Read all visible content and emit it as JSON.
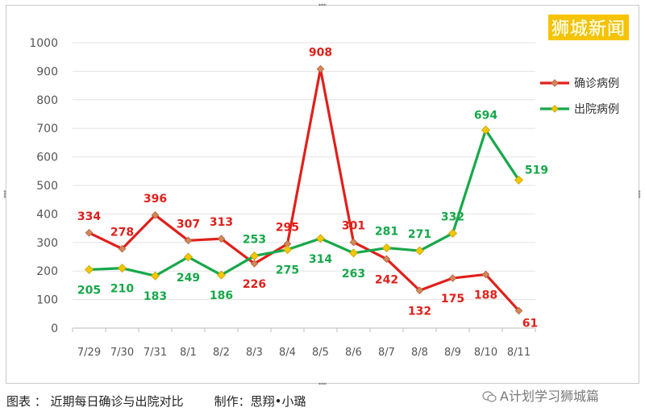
{
  "watermark": "狮城新闻",
  "caption": "图表 ： 近期每日确诊与出院对比        制作：思翔•小璐",
  "credit": "A计划学习狮城篇",
  "colors": {
    "confirmed": "#e0201b",
    "discharged": "#17a84a",
    "marker": "#f0c800",
    "grid": "#e3e3e3",
    "axis_text": "#555555"
  },
  "chart_data": {
    "type": "line",
    "title": "",
    "xlabel": "",
    "ylabel": "",
    "categories": [
      "7/29",
      "7/30",
      "7/31",
      "8/1",
      "8/2",
      "8/3",
      "8/4",
      "8/5",
      "8/6",
      "8/7",
      "8/8",
      "8/9",
      "8/10",
      "8/11"
    ],
    "ylim": [
      0,
      1000
    ],
    "yticks": [
      0,
      100,
      200,
      300,
      400,
      500,
      600,
      700,
      800,
      900,
      1000
    ],
    "grid": true,
    "legend": "top-right",
    "series": [
      {
        "name": "确诊病例",
        "color": "#e0201b",
        "values": [
          334,
          278,
          396,
          307,
          313,
          226,
          295,
          908,
          301,
          242,
          132,
          175,
          188,
          61
        ]
      },
      {
        "name": "出院病例",
        "color": "#17a84a",
        "values": [
          205,
          210,
          183,
          249,
          186,
          253,
          275,
          314,
          263,
          281,
          271,
          332,
          694,
          519
        ]
      }
    ]
  }
}
